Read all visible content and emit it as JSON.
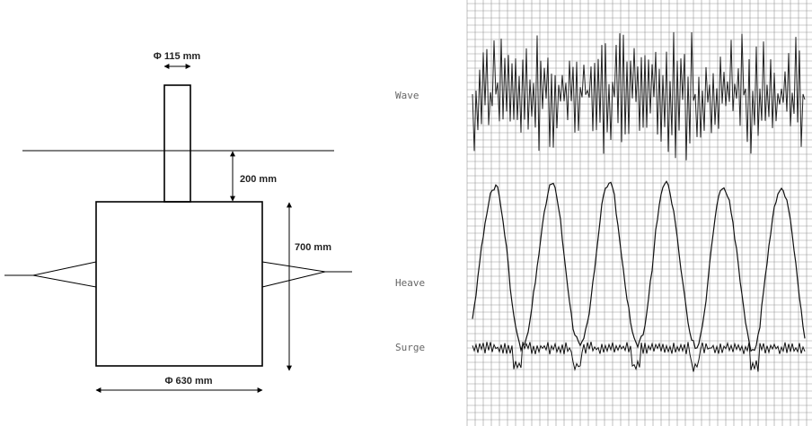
{
  "diagram": {
    "dimensions": {
      "mast_diameter": "Φ 115 mm",
      "draft_above": "200 mm",
      "body_height": "700 mm",
      "body_diameter": "Φ 630 mm"
    }
  },
  "recording": {
    "labels": {
      "wave": "Wave",
      "heave": "Heave",
      "surge": "Surge"
    }
  }
}
